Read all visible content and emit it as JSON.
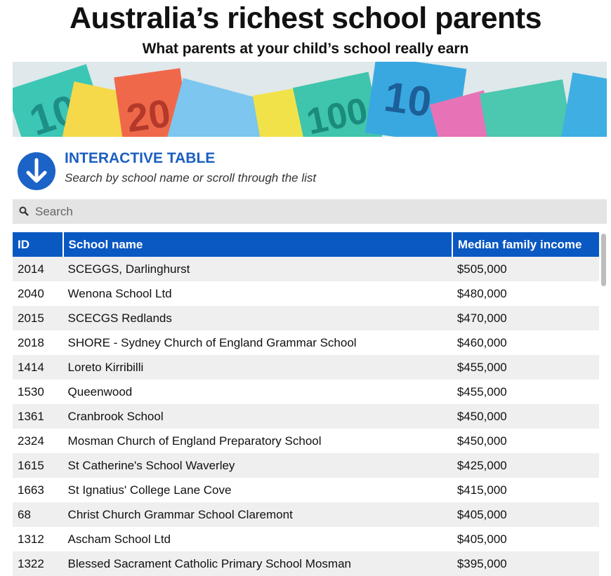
{
  "header": {
    "title": "Australia’s richest school parents",
    "subtitle": "What parents at your child’s school really earn"
  },
  "section": {
    "heading": "INTERACTIVE TABLE",
    "instruction": "Search by school name or scroll through the list"
  },
  "search": {
    "placeholder": "Search"
  },
  "table": {
    "columns": [
      "ID",
      "School name",
      "Median family income"
    ],
    "rows": [
      [
        "2014",
        "SCEGGS, Darlinghurst",
        "$505,000"
      ],
      [
        "2040",
        "Wenona School Ltd",
        "$480,000"
      ],
      [
        "2015",
        "SCECGS Redlands",
        "$470,000"
      ],
      [
        "2018",
        "SHORE - Sydney Church of England Grammar School",
        "$460,000"
      ],
      [
        "1414",
        "Loreto Kirribilli",
        "$455,000"
      ],
      [
        "1530",
        "Queenwood",
        "$455,000"
      ],
      [
        "1361",
        "Cranbrook School",
        "$450,000"
      ],
      [
        "2324",
        "Mosman Church of England Preparatory School",
        "$450,000"
      ],
      [
        "1615",
        "St Catherine's School Waverley",
        "$425,000"
      ],
      [
        "1663",
        "St Ignatius' College Lane Cove",
        "$415,000"
      ],
      [
        "68",
        "Christ Church Grammar School Claremont",
        "$405,000"
      ],
      [
        "1312",
        "Ascham School Ltd",
        "$405,000"
      ],
      [
        "1322",
        "Blessed Sacrament Catholic Primary School Mosman",
        "$395,000"
      ]
    ]
  }
}
